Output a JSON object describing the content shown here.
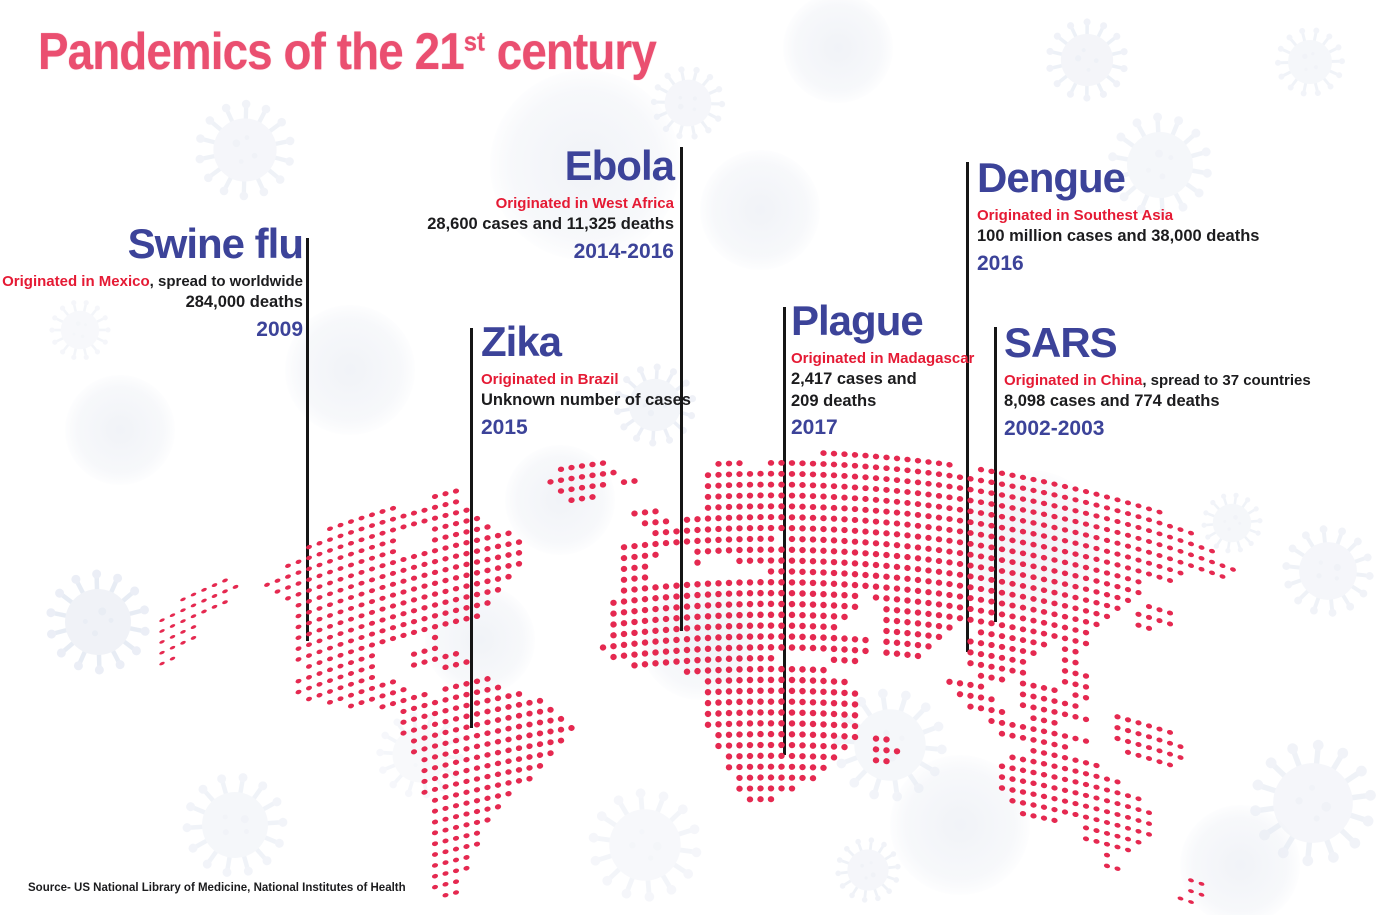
{
  "title": {
    "prefix": "Pandemics of the 21",
    "superscript": "st",
    "suffix": " century"
  },
  "source": "Source- US National Library of Medicine, National Institutes of Health",
  "colors": {
    "title_pink": "#ea4f70",
    "name_blue": "#3c4399",
    "origin_red": "#e51a34",
    "text_dark": "#1c1c1e",
    "map_dot": "#e52950",
    "connector_line": "#151515",
    "virus_gray": "#eceff6"
  },
  "pandemics": [
    {
      "id": "swine-flu",
      "name": "Swine flu",
      "origin": "Originated in Mexico",
      "origin_suffix": ", spread to worldwide",
      "stats": [
        "284,000 deaths"
      ],
      "years": "2009"
    },
    {
      "id": "ebola",
      "name": "Ebola",
      "origin": "Originated in West Africa",
      "origin_suffix": "",
      "stats": [
        "28,600 cases and 11,325 deaths"
      ],
      "years": "2014-2016"
    },
    {
      "id": "zika",
      "name": "Zika",
      "origin": "Originated in Brazil",
      "origin_suffix": "",
      "stats": [
        "Unknown number of cases"
      ],
      "years": "2015"
    },
    {
      "id": "plague",
      "name": "Plague",
      "origin": "Originated in Madagascar",
      "origin_suffix": "",
      "stats": [
        "2,417 cases and",
        "209 deaths"
      ],
      "years": "2017"
    },
    {
      "id": "dengue",
      "name": "Dengue",
      "origin": "Originated in Southest Asia",
      "origin_suffix": "",
      "stats": [
        "100 million cases and 38,000 deaths"
      ],
      "years": "2016"
    },
    {
      "id": "sars",
      "name": "SARS",
      "origin": "Originated in China",
      "origin_suffix": ", spread to 37 countries",
      "stats": [
        "8,098 cases and 774 deaths"
      ],
      "years": "2002-2003"
    }
  ],
  "map": {
    "dot_color": "#e52950",
    "row_segments": [
      [
        [
          16,
          22
        ],
        [
          26,
          28
        ],
        [
          38,
          42
        ],
        [
          63,
          75
        ],
        [
          78,
          95
        ]
      ],
      [
        [
          2,
          6
        ],
        [
          14,
          28
        ],
        [
          37,
          43
        ],
        [
          53,
          55
        ],
        [
          58,
          98
        ]
      ],
      [
        [
          0,
          7
        ],
        [
          12,
          29
        ],
        [
          38,
          42
        ],
        [
          44,
          45
        ],
        [
          52,
          100
        ]
      ],
      [
        [
          0,
          6
        ],
        [
          10,
          22
        ],
        [
          26,
          30
        ],
        [
          39,
          41
        ],
        [
          52,
          102
        ]
      ],
      [
        [
          0,
          3
        ],
        [
          11,
          22
        ],
        [
          26,
          31
        ],
        [
          52,
          101
        ]
      ],
      [
        [
          0,
          3
        ],
        [
          12,
          33
        ],
        [
          45,
          47
        ],
        [
          52,
          97
        ]
      ],
      [
        [
          0,
          1
        ],
        [
          13,
          34
        ],
        [
          46,
          48
        ],
        [
          50,
          96
        ]
      ],
      [
        [
          13,
          34
        ],
        [
          47,
          93
        ]
      ],
      [
        [
          13,
          34
        ],
        [
          44,
          58
        ],
        [
          60,
          93
        ]
      ],
      [
        [
          13,
          33
        ],
        [
          44,
          47
        ],
        [
          51,
          63
        ],
        [
          64,
          92
        ],
        [
          94,
          96
        ]
      ],
      [
        [
          13,
          32
        ],
        [
          44,
          46
        ],
        [
          51,
          51
        ],
        [
          55,
          91
        ],
        [
          93,
          96
        ]
      ],
      [
        [
          13,
          31
        ],
        [
          44,
          46
        ],
        [
          58,
          90
        ],
        [
          93,
          94
        ]
      ],
      [
        [
          14,
          30
        ],
        [
          44,
          89
        ]
      ],
      [
        [
          13,
          20
        ],
        [
          26,
          26
        ],
        [
          43,
          66
        ],
        [
          68,
          88
        ]
      ],
      [
        [
          13,
          20
        ],
        [
          24,
          26
        ],
        [
          43,
          66
        ],
        [
          69,
          88
        ]
      ],
      [
        [
          14,
          20
        ],
        [
          24,
          28
        ],
        [
          43,
          65
        ],
        [
          69,
          75
        ],
        [
          78,
          84
        ],
        [
          86,
          87
        ]
      ],
      [
        [
          16,
          22
        ],
        [
          27,
          29
        ],
        [
          43,
          64
        ],
        [
          69,
          74
        ],
        [
          77,
          83
        ],
        [
          86,
          87
        ]
      ],
      [
        [
          18,
          23
        ],
        [
          42,
          67
        ],
        [
          69,
          73
        ],
        [
          77,
          82
        ],
        [
          86,
          88
        ]
      ],
      [
        [
          21,
          25
        ],
        [
          27,
          31
        ],
        [
          43,
          67
        ],
        [
          69,
          72
        ],
        [
          77,
          82
        ],
        [
          86,
          88
        ]
      ],
      [
        [
          23,
          32
        ],
        [
          45,
          58
        ],
        [
          64,
          66
        ],
        [
          78,
          80
        ],
        [
          82,
          85
        ],
        [
          87,
          88
        ]
      ],
      [
        [
          23,
          34
        ],
        [
          50,
          63
        ],
        [
          75,
          78
        ],
        [
          82,
          87
        ],
        [
          91,
          96
        ]
      ],
      [
        [
          23,
          36
        ],
        [
          52,
          65
        ],
        [
          76,
          79
        ],
        [
          82,
          88
        ],
        [
          91,
          97
        ]
      ],
      [
        [
          24,
          37
        ],
        [
          52,
          66
        ],
        [
          77,
          80
        ],
        [
          83,
          85
        ],
        [
          91,
          97
        ]
      ],
      [
        [
          24,
          38
        ],
        [
          52,
          66
        ],
        [
          79,
          88
        ],
        [
          92,
          96
        ]
      ],
      [
        [
          25,
          39
        ],
        [
          52,
          66
        ],
        [
          80,
          86
        ]
      ],
      [
        [
          25,
          38
        ],
        [
          52,
          66
        ],
        [
          83,
          89
        ]
      ],
      [
        [
          25,
          37
        ],
        [
          53,
          66
        ],
        [
          68,
          69
        ],
        [
          81,
          91
        ]
      ],
      [
        [
          25,
          36
        ],
        [
          53,
          65
        ],
        [
          68,
          70
        ],
        [
          80,
          93
        ]
      ],
      [
        [
          26,
          35
        ],
        [
          54,
          64
        ],
        [
          68,
          69
        ],
        [
          80,
          94
        ]
      ],
      [
        [
          26,
          33
        ],
        [
          54,
          63
        ],
        [
          80,
          94
        ]
      ],
      [
        [
          26,
          32
        ],
        [
          55,
          62
        ],
        [
          81,
          94
        ]
      ],
      [
        [
          26,
          31
        ],
        [
          55,
          60
        ],
        [
          82,
          85
        ],
        [
          88,
          93
        ]
      ],
      [
        [
          26,
          30
        ],
        [
          56,
          58
        ],
        [
          88,
          92
        ]
      ],
      [
        [
          26,
          30
        ],
        [
          90,
          90
        ],
        [
          98,
          99
        ]
      ],
      [
        [
          26,
          29
        ],
        [
          90,
          91
        ],
        [
          98,
          99
        ]
      ],
      [
        [
          26,
          29
        ],
        [
          97,
          98
        ]
      ],
      [
        [
          26,
          28
        ]
      ],
      [
        [
          27,
          28
        ]
      ]
    ]
  }
}
